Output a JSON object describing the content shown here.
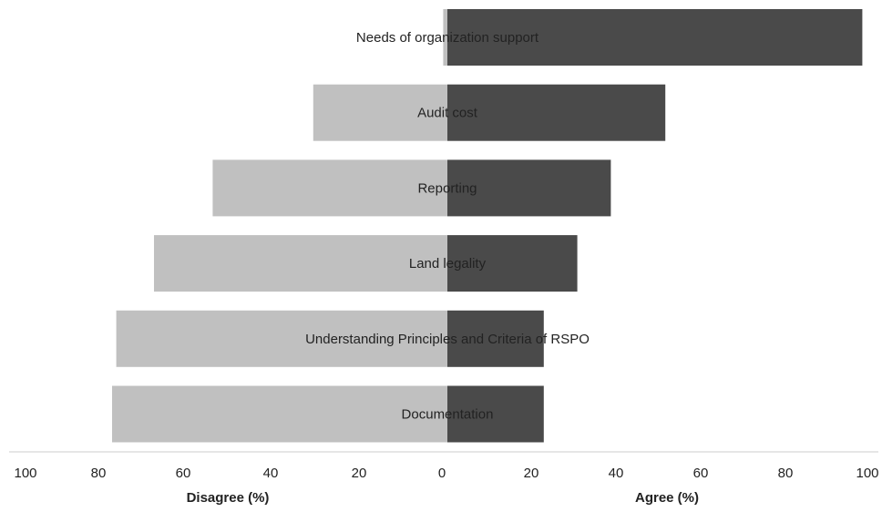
{
  "chart_data": {
    "type": "bar",
    "subtype": "diverging-horizontal",
    "categories": [
      "Needs of organization support",
      "Audit cost",
      "Reporting",
      "Land legality",
      "Understanding Principles and Criteria of RSPO",
      "Documentation"
    ],
    "series": [
      {
        "name": "Disagree",
        "values": [
          1,
          32,
          56,
          70,
          79,
          80
        ]
      },
      {
        "name": "Agree",
        "values": [
          99,
          52,
          39,
          31,
          23,
          23
        ]
      }
    ],
    "xlabel_left": "Disagree (%)",
    "xlabel_right": "Agree (%)",
    "left_ticks": [
      "100",
      "80",
      "60",
      "40",
      "20",
      "0"
    ],
    "right_ticks": [
      "20",
      "40",
      "60",
      "80",
      "100"
    ],
    "xlim": [
      -100,
      100
    ],
    "grid": false,
    "legend": "none",
    "colors": {
      "disagree": "#c0c0c0",
      "agree": "#4a4a4a",
      "axis": "#cccccc",
      "text": "#222222"
    }
  }
}
